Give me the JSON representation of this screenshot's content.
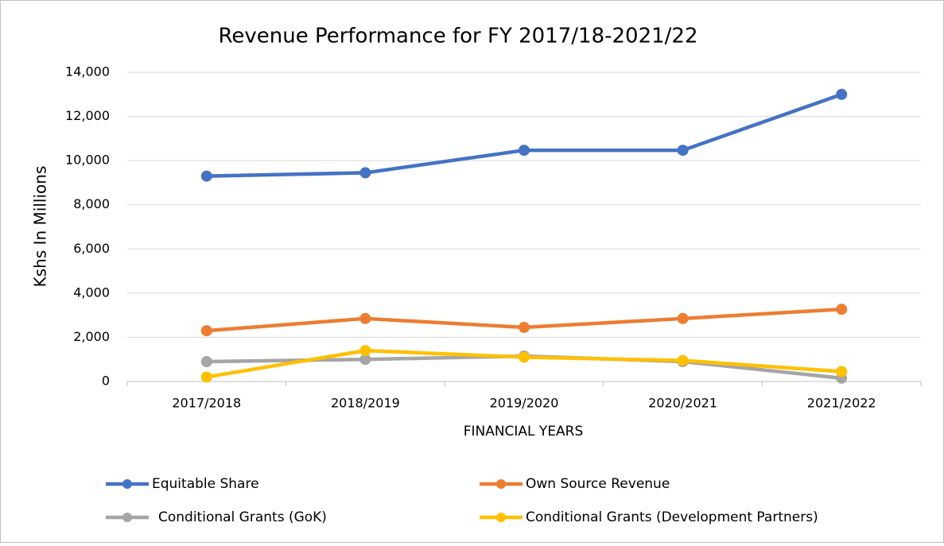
{
  "chart_data": {
    "type": "line",
    "title": "Revenue Performance for FY 2017/18-2021/22",
    "x_label": "FINANCIAL YEARS",
    "y_label": "Kshs In Millions",
    "categories": [
      "2017/2018",
      "2018/2019",
      "2019/2020",
      "2020/2021",
      "2021/2022"
    ],
    "series": [
      {
        "name": "Equitable Share",
        "color": "#4472c4",
        "values": [
          9300,
          9450,
          10470,
          10470,
          13000
        ]
      },
      {
        "name": "Own Source Revenue",
        "color": "#ed7d31",
        "values": [
          2300,
          2850,
          2450,
          2850,
          3270
        ]
      },
      {
        "name": "Conditional Grants (GoK)",
        "color": "#a5a5a5",
        "values": [
          900,
          1000,
          1150,
          900,
          150
        ]
      },
      {
        "name": "Conditional Grants (Development Partners)",
        "color": "#ffc000",
        "values": [
          200,
          1400,
          1100,
          950,
          450
        ]
      }
    ],
    "ylim": [
      0,
      14000
    ],
    "yticks": [
      0,
      {
        "value": 2000,
        "label": "2,000"
      },
      {
        "value": 4000,
        "label": "4,000"
      },
      {
        "value": 6000,
        "label": "6,000"
      },
      {
        "value": 8000,
        "label": "8,000"
      },
      {
        "value": 10000,
        "label": "10,000"
      },
      {
        "value": 12000,
        "label": "12,000"
      },
      {
        "value": 14000,
        "label": "14,000"
      }
    ],
    "grid": true,
    "legend": "bottom"
  }
}
